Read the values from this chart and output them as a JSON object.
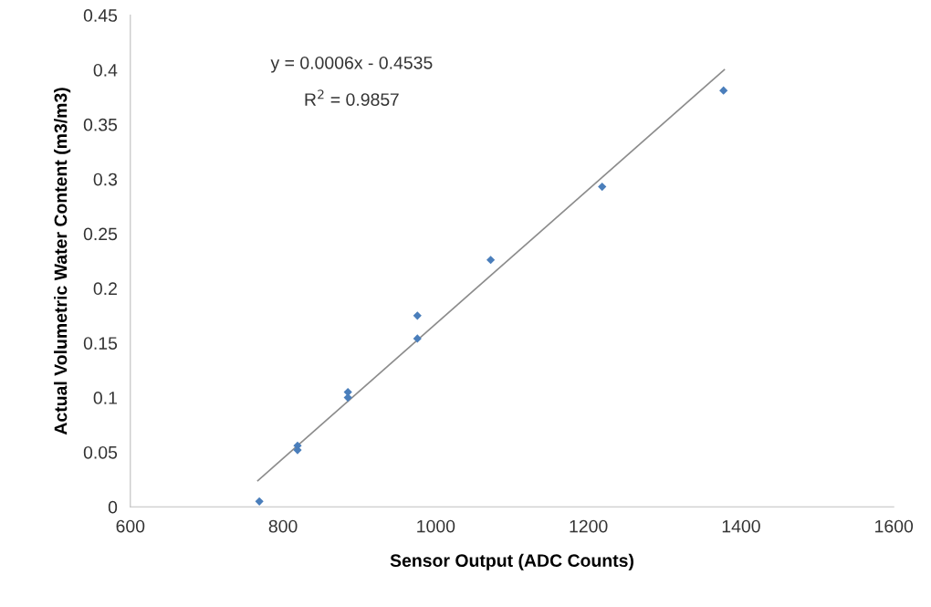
{
  "chart_data": {
    "type": "scatter",
    "xlabel": "Sensor Output (ADC Counts)",
    "ylabel": "Actual Volumetric Water Content (m3/m3)",
    "annotations": [
      "y = 0.0006x - 0.4535",
      "R$^{2}$ = 0.9857"
    ],
    "series": [
      {
        "marker": "diamond",
        "color": "#4a7ebb",
        "x": [
          769,
          819,
          819,
          885,
          885,
          976,
          976,
          1072,
          1218,
          1377
        ],
        "values": [
          0.005,
          0.056,
          0.052,
          0.105,
          0.1,
          0.175,
          0.154,
          0.226,
          0.293,
          0.381
        ]
      },
      {
        "type": "line",
        "color": "#8c8c8c",
        "x": [
          767,
          1378
        ],
        "values": [
          0.024,
          0.4
        ]
      }
    ],
    "xlim": [
      600,
      1600
    ],
    "xticks": [
      600,
      800,
      1000,
      1200,
      1400,
      1600
    ],
    "ylim": [
      0,
      0.45
    ],
    "yticks": [
      0,
      0.05,
      0.1,
      0.15,
      0.2,
      0.25,
      0.3,
      0.35,
      0.4,
      0.45
    ],
    "grid": false
  }
}
